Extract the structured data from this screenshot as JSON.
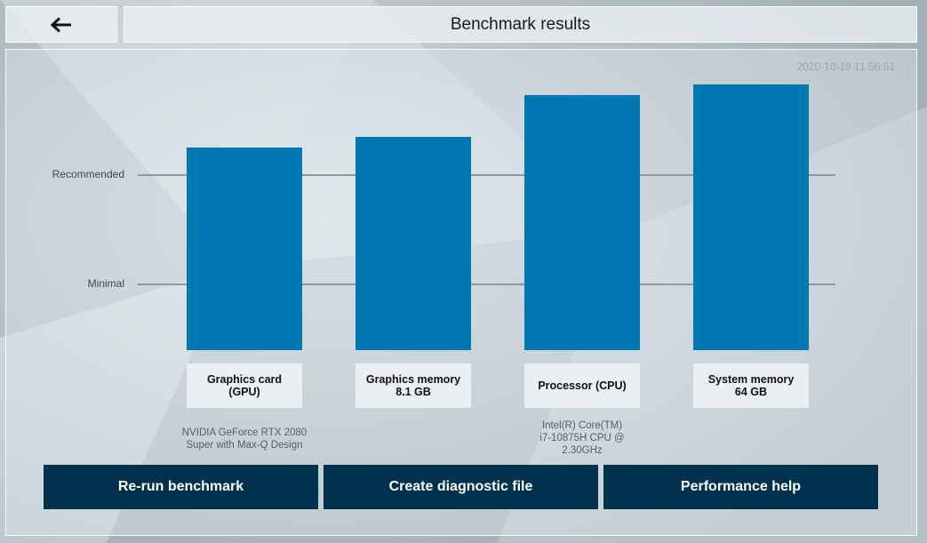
{
  "header": {
    "back_icon": "arrow-left-icon",
    "title": "Benchmark results"
  },
  "timestamp": "2020-10-18 11:56:51",
  "colors": {
    "bar": "#0079b3",
    "button": "#00324d",
    "reference_line": "#8e9aa1"
  },
  "chart_data": {
    "type": "bar",
    "reference_lines": [
      {
        "label": "Recommended",
        "level": 1.0
      },
      {
        "label": "Minimal",
        "level": 0.0
      }
    ],
    "categories": [
      {
        "label": "Graphics card\n(GPU)",
        "detail": "NVIDIA GeForce RTX 2080\nSuper with Max-Q Design",
        "level": 1.25
      },
      {
        "label": "Graphics memory\n8.1 GB",
        "detail": "",
        "level": 1.35
      },
      {
        "label": "Processor (CPU)",
        "detail": "Intel(R) Core(TM)\ni7-10875H CPU @\n2.30GHz",
        "level": 1.73
      },
      {
        "label": "System memory\n64 GB",
        "detail": "",
        "level": 1.83
      }
    ]
  },
  "actions": [
    {
      "label": "Re-run benchmark"
    },
    {
      "label": "Create diagnostic file"
    },
    {
      "label": "Performance help"
    }
  ]
}
